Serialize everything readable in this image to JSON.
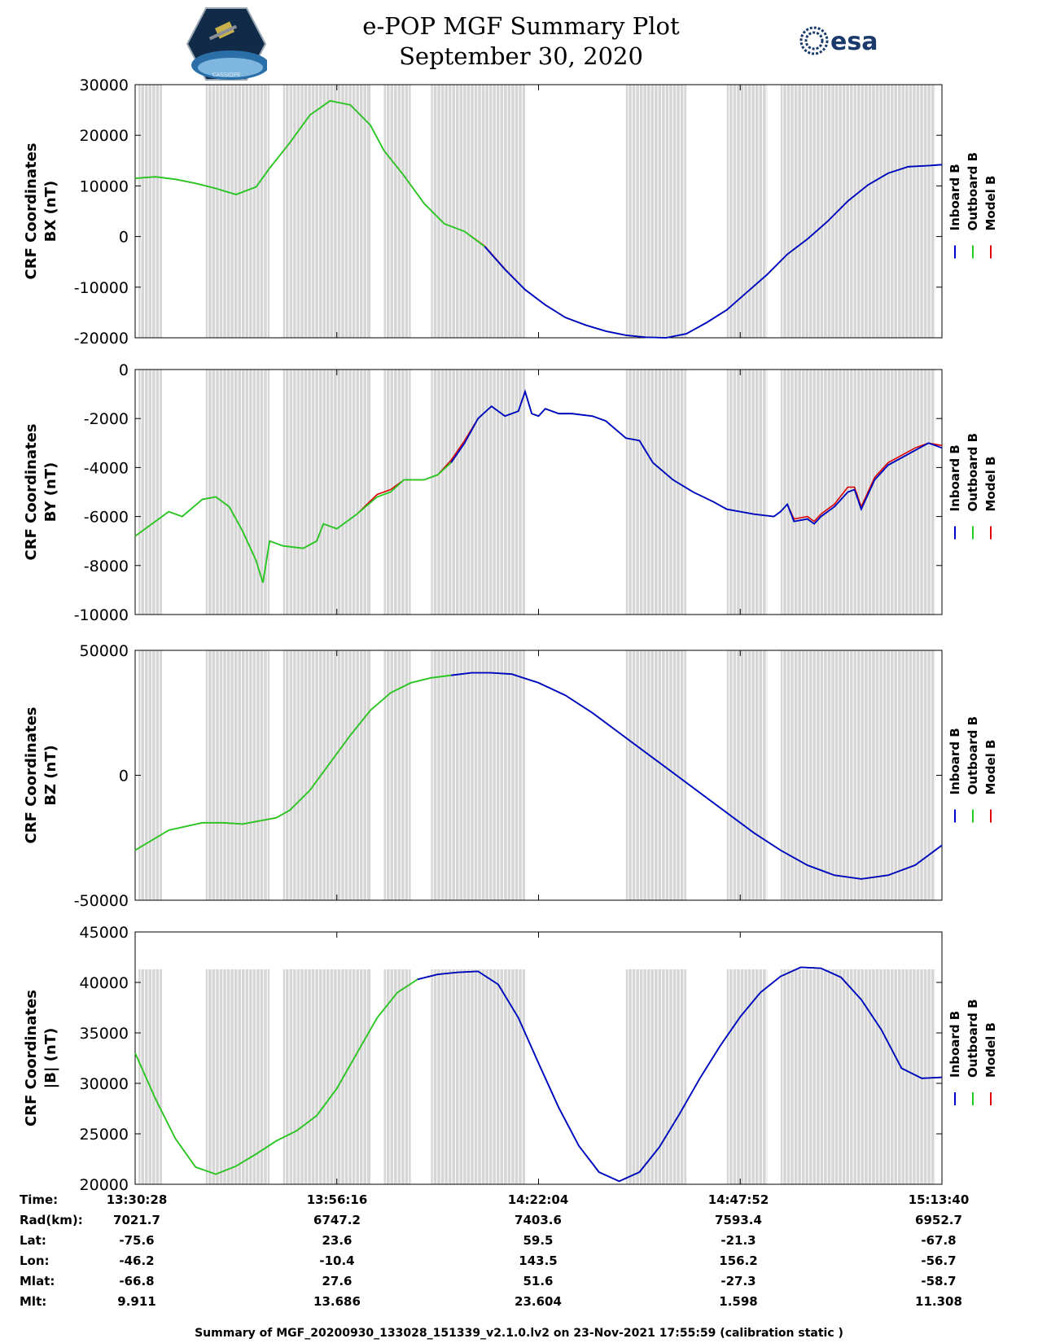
{
  "header": {
    "title": "e-POP MGF Summary Plot",
    "subtitle": "September 30, 2020",
    "logo_left_text": "CASSIOPE",
    "logo_right_text": "esa"
  },
  "legend": {
    "entries": [
      "Inboard B",
      "Outboard B",
      "Model B"
    ],
    "colors": [
      "#0000cc",
      "#22cc22",
      "#dd0000"
    ]
  },
  "colors": {
    "gap_bar": "#d6d6d6",
    "inboard": "#0000cc",
    "outboard": "#22cc22",
    "model": "#dd0000"
  },
  "chart_data": [
    {
      "type": "line",
      "ylabel_line1": "CRF Coordinates",
      "ylabel_line2": "BX (nT)",
      "ylim": [
        -20000,
        30000
      ],
      "yticks": [
        -20000,
        -10000,
        0,
        10000,
        20000,
        30000
      ],
      "ytick_labels": [
        "-20000",
        "-10000",
        "0",
        "10000",
        "20000",
        "30000"
      ],
      "xlim": [
        0,
        120
      ],
      "x": [
        0,
        3,
        6,
        9,
        12,
        15,
        18,
        20,
        23,
        26,
        29,
        32,
        35,
        37,
        40,
        43,
        46,
        49,
        52,
        55,
        58,
        61,
        64,
        67,
        70,
        73,
        76,
        79,
        82,
        85,
        88,
        91,
        94,
        97,
        100,
        103,
        106,
        109,
        112,
        115,
        118,
        120
      ],
      "series": [
        {
          "name": "Outboard B",
          "values": [
            11500,
            11800,
            11300,
            10500,
            9500,
            8300,
            9800,
            13500,
            18500,
            24000,
            26800,
            26000,
            22000,
            17000,
            12000,
            6500,
            2500,
            1000,
            -2000,
            -6500,
            -10500,
            -13500,
            -16000,
            -17500,
            -18700,
            -19500,
            -19900,
            -20000,
            -19200,
            -17000,
            -14500,
            -11000,
            -7500,
            -3500,
            -500,
            3000,
            7000,
            10200,
            12500,
            13800,
            14000,
            14200
          ]
        },
        {
          "name": "Inboard B",
          "values": [
            11500,
            11800,
            11300,
            10500,
            9500,
            8300,
            9800,
            13500,
            18500,
            24000,
            26800,
            26000,
            22000,
            17000,
            12000,
            6500,
            2500,
            1000,
            -2000,
            -6500,
            -10500,
            -13500,
            -16000,
            -17500,
            -18700,
            -19500,
            -19900,
            -20000,
            -19200,
            -17000,
            -14500,
            -11000,
            -7500,
            -3500,
            -500,
            3000,
            7000,
            10200,
            12500,
            13800,
            14000,
            14200
          ]
        },
        {
          "name": "Model B",
          "values": [
            11500,
            11800,
            11300,
            10500,
            9500,
            8300,
            9800,
            13500,
            18500,
            24000,
            26800,
            26000,
            22000,
            17000,
            12000,
            6500,
            2500,
            1000,
            -1900,
            -6400,
            -10500,
            -13500,
            -16000,
            -17500,
            -18700,
            -19500,
            -19900,
            -20000,
            -19200,
            -17000,
            -14500,
            -11000,
            -7500,
            -3500,
            -500,
            3000,
            7000,
            10200,
            12500,
            13800,
            14000,
            14200
          ]
        }
      ],
      "inboard_start_x": 51
    },
    {
      "type": "line",
      "ylabel_line1": "CRF Coordinates",
      "ylabel_line2": "BY (nT)",
      "ylim": [
        -10000,
        0
      ],
      "yticks": [
        -10000,
        -8000,
        -6000,
        -4000,
        -2000,
        0
      ],
      "ytick_labels": [
        "-10000",
        "-8000",
        "-6000",
        "-4000",
        "-2000",
        "0"
      ],
      "xlim": [
        0,
        120
      ],
      "x": [
        0,
        3,
        5,
        7,
        10,
        12,
        14,
        16,
        18,
        19,
        20,
        22,
        25,
        27,
        28,
        30,
        33,
        36,
        38,
        40,
        43,
        45,
        47,
        49,
        51,
        53,
        55,
        57,
        58,
        59,
        60,
        61,
        63,
        65,
        68,
        70,
        73,
        75,
        77,
        80,
        83,
        86,
        88,
        90,
        92,
        95,
        96,
        97,
        98,
        100,
        101,
        102,
        104,
        106,
        107,
        108,
        110,
        112,
        114,
        116,
        118,
        120
      ],
      "series": [
        {
          "name": "Outboard B",
          "values": [
            -6800,
            -6200,
            -5800,
            -6000,
            -5300,
            -5200,
            -5600,
            -6600,
            -7800,
            -8700,
            -7000,
            -7200,
            -7300,
            -7000,
            -6300,
            -6500,
            -5900,
            -5200,
            -5000,
            -4500,
            -4500,
            -4300,
            -3800,
            -3000,
            -2000,
            -1500,
            -1900,
            -1700,
            -900,
            -1800,
            -1900,
            -1600,
            -1800,
            -1800,
            -1900,
            -2100,
            -2800,
            -2900,
            -3800,
            -4500,
            -5000,
            -5400,
            -5700,
            -5800,
            -5900,
            -6000,
            -5800,
            -5500,
            -6200,
            -6100,
            -6300,
            -6000,
            -5600,
            -5000,
            -4900,
            -5700,
            -4500,
            -3900,
            -3600,
            -3300,
            -3000,
            -3200
          ]
        },
        {
          "name": "Inboard B",
          "values": [
            -6800,
            -6200,
            -5800,
            -6000,
            -5300,
            -5200,
            -5600,
            -6600,
            -7800,
            -8700,
            -7000,
            -7200,
            -7300,
            -7000,
            -6300,
            -6500,
            -5900,
            -5200,
            -5000,
            -4500,
            -4500,
            -4300,
            -3800,
            -3000,
            -2000,
            -1500,
            -1900,
            -1700,
            -900,
            -1800,
            -1900,
            -1600,
            -1800,
            -1800,
            -1900,
            -2100,
            -2800,
            -2900,
            -3800,
            -4500,
            -5000,
            -5400,
            -5700,
            -5800,
            -5900,
            -6000,
            -5800,
            -5500,
            -6200,
            -6100,
            -6300,
            -6000,
            -5600,
            -5000,
            -4900,
            -5700,
            -4500,
            -3900,
            -3600,
            -3300,
            -3000,
            -3200
          ]
        },
        {
          "name": "Model B",
          "values": [
            -6800,
            -6200,
            -5800,
            -6000,
            -5300,
            -5200,
            -5600,
            -6600,
            -7800,
            -8700,
            -7000,
            -7200,
            -7300,
            -7000,
            -6300,
            -6500,
            -5900,
            -5100,
            -4900,
            -4500,
            -4500,
            -4300,
            -3700,
            -2900,
            -2000,
            -1500,
            -1900,
            -1700,
            -900,
            -1800,
            -1900,
            -1600,
            -1800,
            -1800,
            -1900,
            -2100,
            -2800,
            -2900,
            -3800,
            -4500,
            -5000,
            -5400,
            -5700,
            -5800,
            -5900,
            -6000,
            -5800,
            -5500,
            -6100,
            -6000,
            -6200,
            -5900,
            -5500,
            -4800,
            -4800,
            -5600,
            -4400,
            -3800,
            -3500,
            -3200,
            -3000,
            -3100
          ]
        }
      ],
      "inboard_start_x": 47
    },
    {
      "type": "line",
      "ylabel_line1": "CRF Coordinates",
      "ylabel_line2": "BZ (nT)",
      "ylim": [
        -50000,
        50000
      ],
      "yticks": [
        -50000,
        0,
        50000
      ],
      "ytick_labels": [
        "-50000",
        "0",
        "50000"
      ],
      "xlim": [
        0,
        120
      ],
      "x": [
        0,
        5,
        10,
        13,
        16,
        19,
        21,
        23,
        26,
        29,
        32,
        35,
        38,
        41,
        44,
        47,
        50,
        53,
        56,
        60,
        64,
        68,
        72,
        76,
        80,
        84,
        88,
        92,
        96,
        100,
        104,
        108,
        112,
        116,
        120
      ],
      "series": [
        {
          "name": "Outboard B",
          "values": [
            -30000,
            -22000,
            -19000,
            -19000,
            -19500,
            -18000,
            -17000,
            -14000,
            -6000,
            5000,
            16000,
            26000,
            33000,
            37000,
            39000,
            40000,
            41000,
            41000,
            40500,
            37000,
            32000,
            25000,
            17000,
            9000,
            1000,
            -7000,
            -15000,
            -23000,
            -30000,
            -36000,
            -40000,
            -41500,
            -40000,
            -36000,
            -28000
          ]
        },
        {
          "name": "Inboard B",
          "values": [
            -30000,
            -22000,
            -19000,
            -19000,
            -19500,
            -18000,
            -17000,
            -14000,
            -6000,
            5000,
            16000,
            26000,
            33000,
            37000,
            39000,
            40000,
            41000,
            41000,
            40500,
            37000,
            32000,
            25000,
            17000,
            9000,
            1000,
            -7000,
            -15000,
            -23000,
            -30000,
            -36000,
            -40000,
            -41500,
            -40000,
            -36000,
            -28000
          ]
        },
        {
          "name": "Model B",
          "values": [
            -30000,
            -22000,
            -19000,
            -19000,
            -19500,
            -18000,
            -17000,
            -14000,
            -6000,
            5000,
            16000,
            26000,
            33000,
            37000,
            39000,
            40000,
            41000,
            41000,
            40500,
            37000,
            32000,
            25000,
            17000,
            9000,
            1000,
            -7000,
            -15000,
            -23000,
            -30000,
            -36000,
            -40000,
            -41500,
            -40000,
            -36000,
            -28000
          ]
        }
      ],
      "inboard_start_x": 47
    },
    {
      "type": "line",
      "ylabel_line1": "CRF Coordinates",
      "ylabel_line2": "|B| (nT)",
      "ylim": [
        20000,
        45000
      ],
      "yticks": [
        20000,
        25000,
        30000,
        35000,
        40000,
        45000
      ],
      "ytick_labels": [
        "20000",
        "25000",
        "30000",
        "35000",
        "40000",
        "45000"
      ],
      "xlim": [
        0,
        120
      ],
      "x": [
        0,
        3,
        6,
        9,
        12,
        15,
        18,
        21,
        24,
        27,
        30,
        33,
        36,
        39,
        42,
        45,
        48,
        51,
        54,
        57,
        60,
        63,
        66,
        69,
        72,
        75,
        78,
        81,
        84,
        87,
        90,
        93,
        96,
        99,
        102,
        105,
        108,
        111,
        114,
        117,
        120
      ],
      "series": [
        {
          "name": "Outboard B",
          "values": [
            33000,
            28500,
            24500,
            21700,
            21000,
            21800,
            23000,
            24300,
            25300,
            26800,
            29500,
            33000,
            36500,
            39000,
            40300,
            40800,
            41000,
            41100,
            39800,
            36500,
            32000,
            27600,
            23800,
            21200,
            20300,
            21200,
            23700,
            27000,
            30500,
            33700,
            36600,
            39000,
            40600,
            41500,
            41400,
            40500,
            38300,
            35300,
            31500,
            30500,
            30600
          ]
        },
        {
          "name": "Inboard B",
          "values": [
            33000,
            28500,
            24500,
            21700,
            21000,
            21800,
            23000,
            24300,
            25300,
            26800,
            29500,
            33000,
            36500,
            39000,
            40300,
            40800,
            41000,
            41100,
            39800,
            36500,
            32000,
            27600,
            23800,
            21200,
            20300,
            21200,
            23700,
            27000,
            30500,
            33700,
            36600,
            39000,
            40600,
            41500,
            41400,
            40500,
            38300,
            35300,
            31500,
            30500,
            30600
          ]
        },
        {
          "name": "Model B",
          "values": [
            33000,
            28500,
            24500,
            21700,
            21000,
            21800,
            23000,
            24300,
            25300,
            26800,
            29500,
            33000,
            36500,
            39000,
            40300,
            40800,
            41000,
            41100,
            39800,
            36500,
            32000,
            27600,
            23800,
            21200,
            20300,
            21200,
            23700,
            27000,
            30500,
            33700,
            36600,
            39000,
            40600,
            41500,
            41400,
            40500,
            38300,
            35300,
            31500,
            30500,
            30600
          ]
        }
      ],
      "inboard_start_x": 42
    }
  ],
  "gap_intervals": [
    [
      0.5,
      4
    ],
    [
      10.5,
      20
    ],
    [
      22,
      35
    ],
    [
      37,
      41
    ],
    [
      44,
      58
    ],
    [
      73,
      82
    ],
    [
      88,
      94
    ],
    [
      96,
      119
    ]
  ],
  "gap_bar_top": 41300,
  "table": {
    "row_labels": [
      "Time:",
      "Rad(km):",
      "Lat:",
      "Lon:",
      "Mlat:",
      "Mlt:"
    ],
    "columns": [
      [
        "13:30:28",
        "7021.7",
        "-75.6",
        "-46.2",
        "-66.8",
        "9.911"
      ],
      [
        "13:56:16",
        "6747.2",
        "23.6",
        "-10.4",
        "27.6",
        "13.686"
      ],
      [
        "14:22:04",
        "7403.6",
        "59.5",
        "143.5",
        "51.6",
        "23.604"
      ],
      [
        "14:47:52",
        "7593.4",
        "-21.3",
        "156.2",
        "-27.3",
        "1.598"
      ],
      [
        "15:13:40",
        "6952.7",
        "-67.8",
        "-56.7",
        "-58.7",
        "11.308"
      ]
    ]
  },
  "footer": "Summary of MGF_20200930_133028_151339_v2.1.0.lv2 on 23-Nov-2021 17:55:59 (calibration static )"
}
